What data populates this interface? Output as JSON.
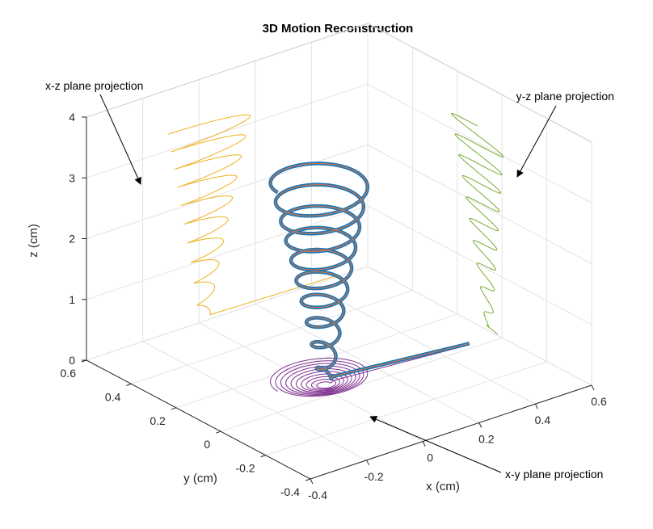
{
  "chart_data": {
    "type": "line3d",
    "title": "3D Motion Reconstruction",
    "xlabel": "x (cm)",
    "ylabel": "y (cm)",
    "zlabel": "z (cm)",
    "xlim": [
      -0.4,
      0.6
    ],
    "ylim": [
      -0.4,
      0.6
    ],
    "zlim": [
      0,
      4
    ],
    "xticks": [
      "-0.4",
      "-0.2",
      "0",
      "0.2",
      "0.4",
      "0.6"
    ],
    "yticks": [
      "-0.4",
      "-0.2",
      "0",
      "0.2",
      "0.4",
      "0.6"
    ],
    "zticks": [
      "0",
      "1",
      "2",
      "3",
      "4"
    ],
    "grid": true,
    "colors": {
      "trajectory": "#1f77b4",
      "trajectory_points": "#e8733a",
      "xz_projection": "#edb120",
      "yz_projection": "#77ac30",
      "xy_projection": "#7e2f8e"
    },
    "annotations": [
      {
        "id": "xz",
        "text": "x-z plane projection"
      },
      {
        "id": "yz",
        "text": "y-z plane projection"
      },
      {
        "id": "xy",
        "text": "x-y plane projection"
      }
    ]
  }
}
